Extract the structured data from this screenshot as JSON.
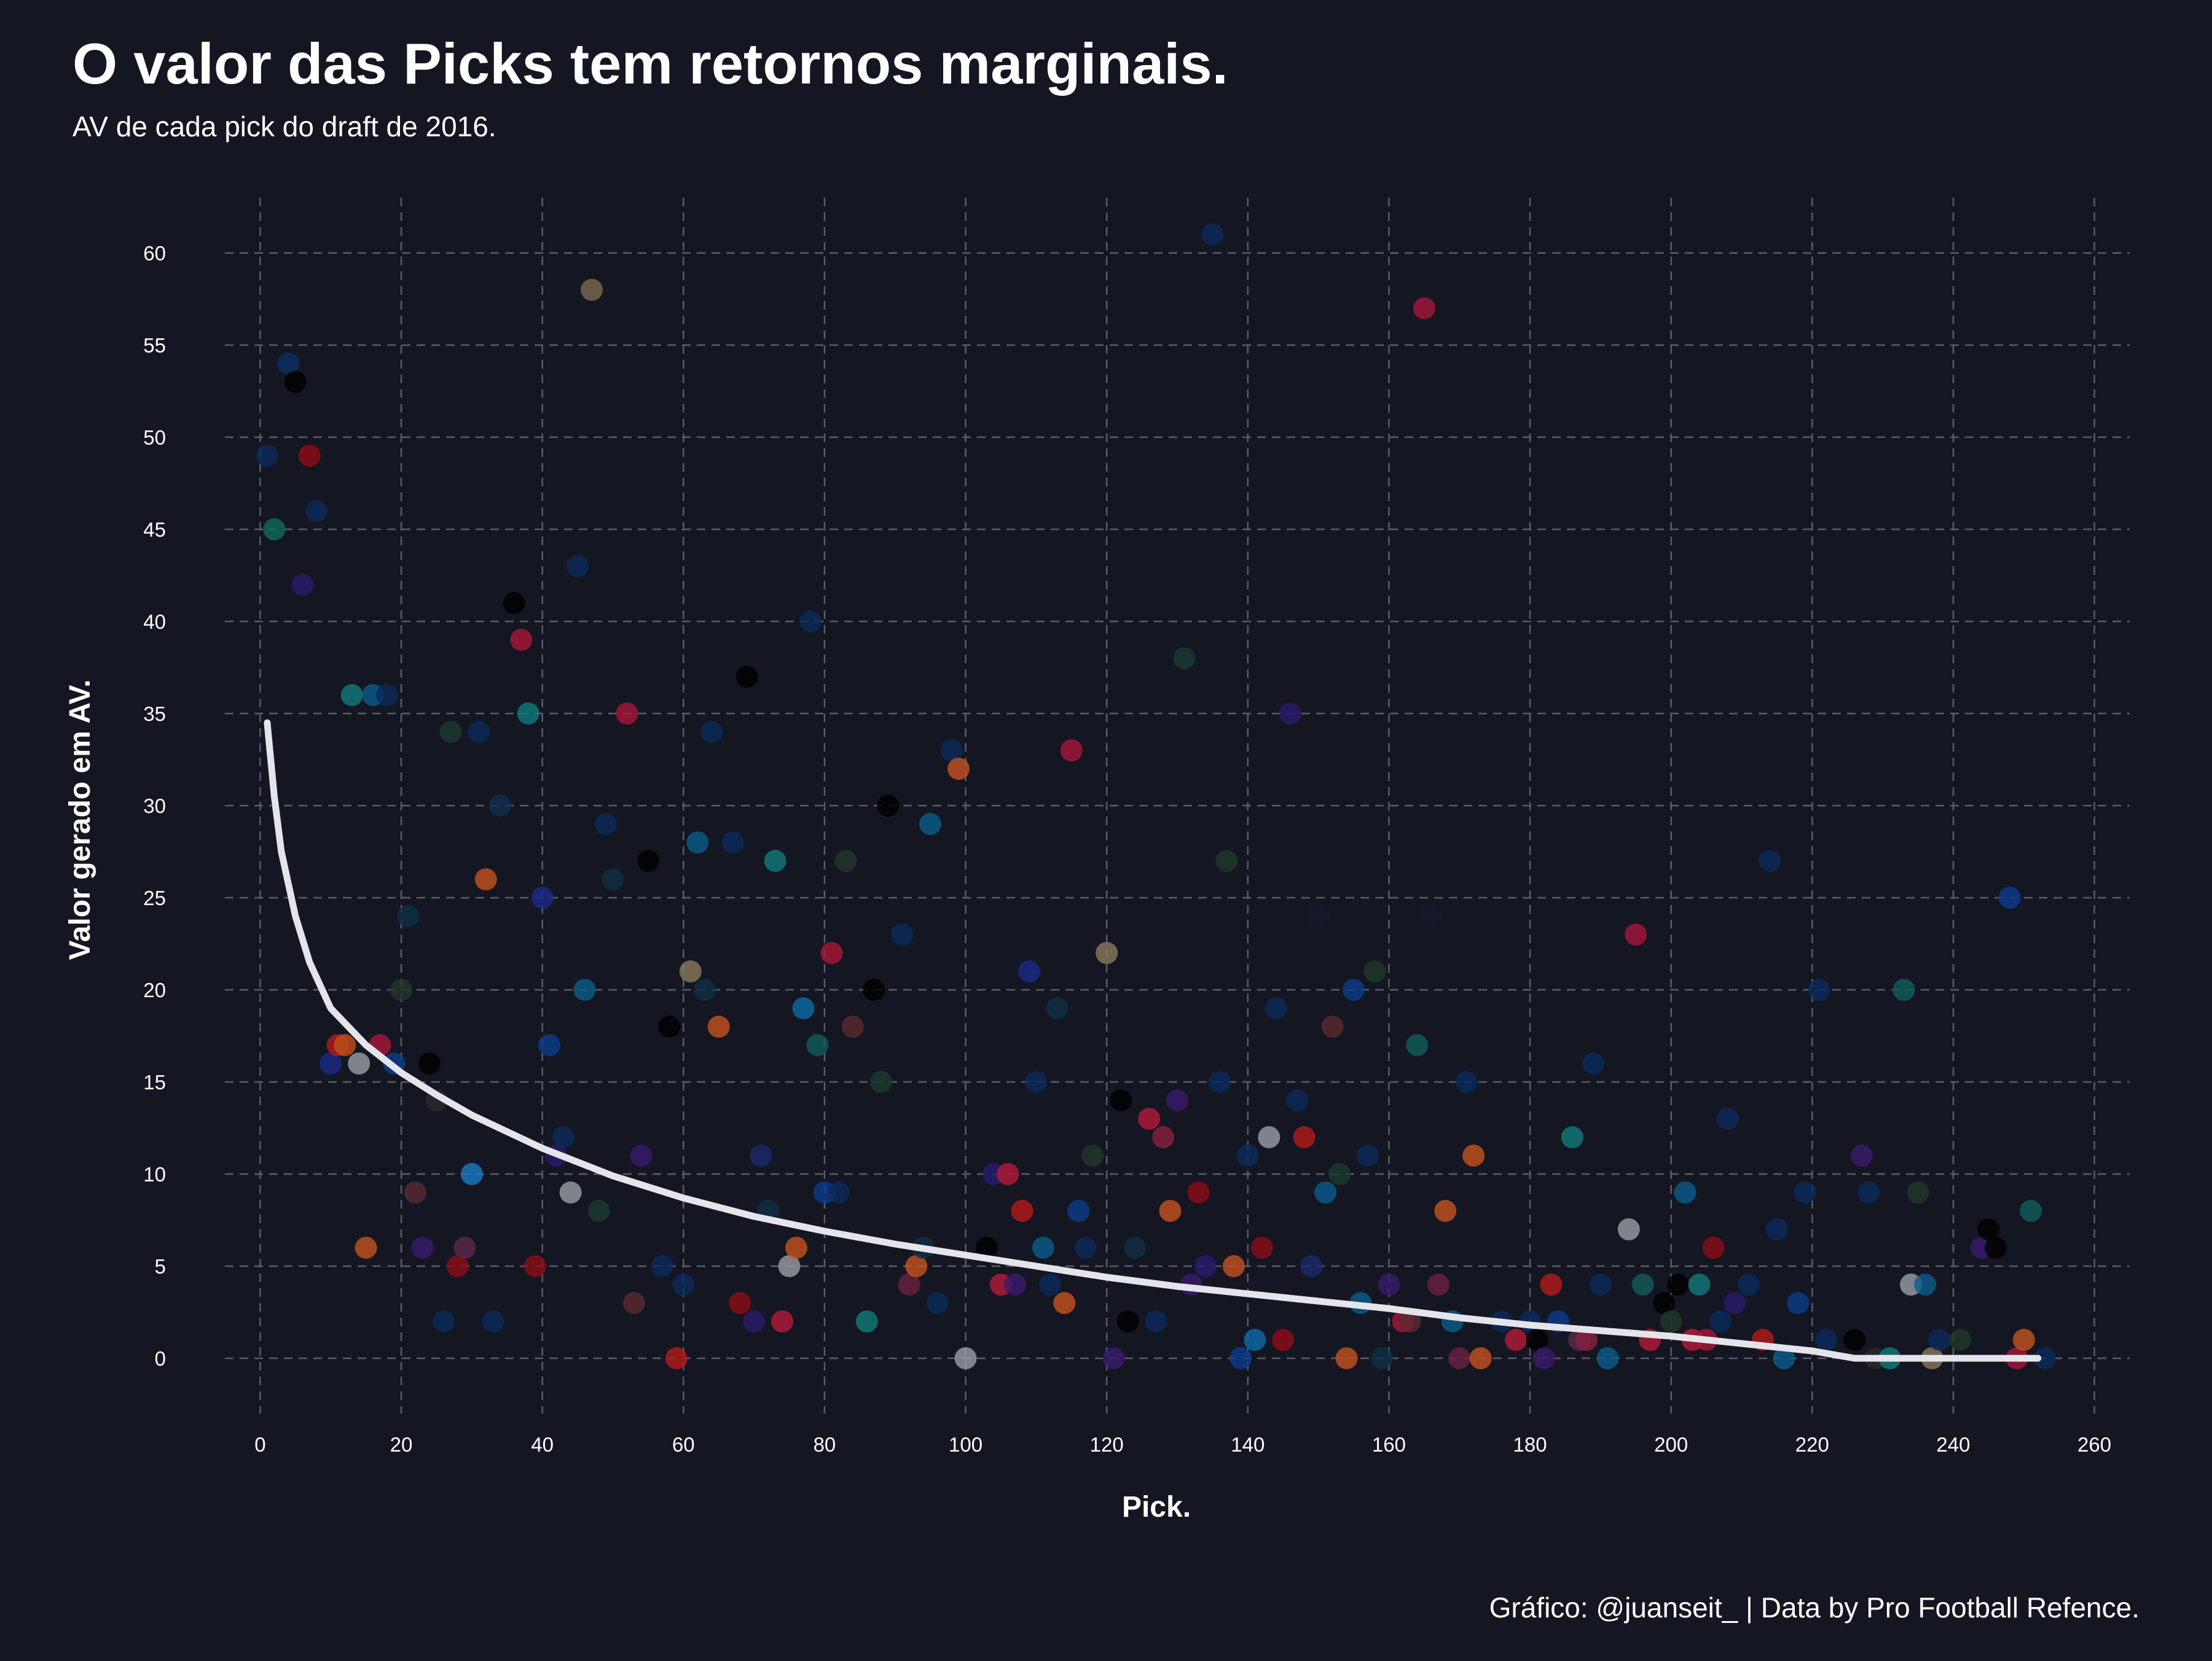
{
  "chart_data": {
    "type": "scatter",
    "title": "O valor das Picks tem retornos marginais.",
    "subtitle": "AV de cada pick do draft de 2016.",
    "xlabel": "Pick.",
    "ylabel": "Valor gerado em AV.",
    "caption": "Gráfico: @juanseit_ | Data by Pro Football Refence.",
    "xlim": [
      -5,
      265
    ],
    "ylim": [
      -3,
      63
    ],
    "x_ticks": [
      0,
      20,
      40,
      60,
      80,
      100,
      120,
      140,
      160,
      180,
      200,
      220,
      240,
      260
    ],
    "y_ticks": [
      0,
      5,
      10,
      15,
      20,
      25,
      30,
      35,
      40,
      45,
      50,
      55,
      60
    ],
    "grid": true,
    "legend": "none",
    "colors": {
      "background": "#141622",
      "grid": "#5a5d68",
      "trend": "#e4e4ea",
      "text": "#ffffff"
    },
    "trend": [
      [
        1,
        34.5
      ],
      [
        2,
        30.5
      ],
      [
        3,
        27.5
      ],
      [
        5,
        24
      ],
      [
        7,
        21.5
      ],
      [
        10,
        19
      ],
      [
        15,
        17
      ],
      [
        20,
        15.5
      ],
      [
        25,
        14.3
      ],
      [
        30,
        13.2
      ],
      [
        40,
        11.4
      ],
      [
        50,
        9.9
      ],
      [
        60,
        8.7
      ],
      [
        70,
        7.7
      ],
      [
        80,
        6.9
      ],
      [
        90,
        6.2
      ],
      [
        100,
        5.6
      ],
      [
        110,
        5
      ],
      [
        120,
        4.4
      ],
      [
        130,
        3.9
      ],
      [
        140,
        3.5
      ],
      [
        150,
        3.1
      ],
      [
        160,
        2.7
      ],
      [
        170,
        2.2
      ],
      [
        180,
        1.8
      ],
      [
        190,
        1.5
      ],
      [
        200,
        1.2
      ],
      [
        210,
        0.8
      ],
      [
        220,
        0.4
      ],
      [
        226,
        0
      ],
      [
        240,
        0
      ],
      [
        252,
        0
      ]
    ],
    "points": [
      {
        "x": 1,
        "y": 49,
        "c": "#0a2a5c"
      },
      {
        "x": 2,
        "y": 45,
        "c": "#0f6b5c"
      },
      {
        "x": 4,
        "y": 54,
        "c": "#0b2f61"
      },
      {
        "x": 5,
        "y": 53,
        "c": "#000000"
      },
      {
        "x": 6,
        "y": 42,
        "c": "#2b1a6e"
      },
      {
        "x": 7,
        "y": 49,
        "c": "#8d0d17"
      },
      {
        "x": 8,
        "y": 46,
        "c": "#0a2a5c"
      },
      {
        "x": 10,
        "y": 16,
        "c": "#1a2a8a"
      },
      {
        "x": 11,
        "y": 17,
        "c": "#b51a1a"
      },
      {
        "x": 12,
        "y": 17,
        "c": "#c2501a"
      },
      {
        "x": 13,
        "y": 36,
        "c": "#0f7a7a"
      },
      {
        "x": 14,
        "y": 16,
        "c": "#9aa0a8"
      },
      {
        "x": 15,
        "y": 6,
        "c": "#c4521e"
      },
      {
        "x": 16,
        "y": 36,
        "c": "#0a5c8c"
      },
      {
        "x": 17,
        "y": 17,
        "c": "#a8173a"
      },
      {
        "x": 18,
        "y": 36,
        "c": "#0a2a5c"
      },
      {
        "x": 19,
        "y": 16,
        "c": "#0b3c8c"
      },
      {
        "x": 20,
        "y": 20,
        "c": "#20382a"
      },
      {
        "x": 21,
        "y": 24,
        "c": "#0f2f45"
      },
      {
        "x": 22,
        "y": 9,
        "c": "#5a2a30"
      },
      {
        "x": 23,
        "y": 6,
        "c": "#3a1a6e"
      },
      {
        "x": 24,
        "y": 16,
        "c": "#000000"
      },
      {
        "x": 25,
        "y": 14,
        "c": "#2a2a2a"
      },
      {
        "x": 26,
        "y": 2,
        "c": "#0a2a5c"
      },
      {
        "x": 27,
        "y": 34,
        "c": "#1c3a30"
      },
      {
        "x": 28,
        "y": 5,
        "c": "#8d0d17"
      },
      {
        "x": 29,
        "y": 6,
        "c": "#5a2a4a"
      },
      {
        "x": 30,
        "y": 10,
        "c": "#1a7ac4"
      },
      {
        "x": 31,
        "y": 34,
        "c": "#0a2a5c"
      },
      {
        "x": 32,
        "y": 26,
        "c": "#c4521e"
      },
      {
        "x": 33,
        "y": 2,
        "c": "#0a2a5c"
      },
      {
        "x": 34,
        "y": 30,
        "c": "#0f3050"
      },
      {
        "x": 36,
        "y": 41,
        "c": "#000000"
      },
      {
        "x": 37,
        "y": 39,
        "c": "#a8173a"
      },
      {
        "x": 38,
        "y": 35,
        "c": "#0f7a7a"
      },
      {
        "x": 39,
        "y": 5,
        "c": "#8d0d17"
      },
      {
        "x": 40,
        "y": 25,
        "c": "#1a2a8a"
      },
      {
        "x": 41,
        "y": 17,
        "c": "#0b3c8c"
      },
      {
        "x": 42,
        "y": 11,
        "c": "#2b1a6e"
      },
      {
        "x": 43,
        "y": 12,
        "c": "#0a2a5c"
      },
      {
        "x": 44,
        "y": 9,
        "c": "#9aa0a8"
      },
      {
        "x": 45,
        "y": 43,
        "c": "#0a2a5c"
      },
      {
        "x": 46,
        "y": 20,
        "c": "#0a5c8c"
      },
      {
        "x": 47,
        "y": 58,
        "c": "#7a6a50"
      },
      {
        "x": 48,
        "y": 8,
        "c": "#1c3a30"
      },
      {
        "x": 49,
        "y": 29,
        "c": "#0a2a5c"
      },
      {
        "x": 50,
        "y": 26,
        "c": "#0f2f45"
      },
      {
        "x": 52,
        "y": 35,
        "c": "#a8173a"
      },
      {
        "x": 53,
        "y": 3,
        "c": "#5a2a30"
      },
      {
        "x": 54,
        "y": 11,
        "c": "#3a1a6e"
      },
      {
        "x": 55,
        "y": 27,
        "c": "#000000"
      },
      {
        "x": 57,
        "y": 5,
        "c": "#0a2a5c"
      },
      {
        "x": 58,
        "y": 18,
        "c": "#000000"
      },
      {
        "x": 59,
        "y": 0,
        "c": "#b51a1a"
      },
      {
        "x": 60,
        "y": 4,
        "c": "#0a2a5c"
      },
      {
        "x": 61,
        "y": 21,
        "c": "#8a7a60"
      },
      {
        "x": 62,
        "y": 28,
        "c": "#0a5c8c"
      },
      {
        "x": 63,
        "y": 20,
        "c": "#0f2f45"
      },
      {
        "x": 64,
        "y": 34,
        "c": "#0a2a5c"
      },
      {
        "x": 65,
        "y": 18,
        "c": "#c4521e"
      },
      {
        "x": 67,
        "y": 28,
        "c": "#0a2a5c"
      },
      {
        "x": 68,
        "y": 3,
        "c": "#8d0d17"
      },
      {
        "x": 69,
        "y": 37,
        "c": "#000000"
      },
      {
        "x": 70,
        "y": 2,
        "c": "#2b1a6e"
      },
      {
        "x": 71,
        "y": 11,
        "c": "#1a2a6e"
      },
      {
        "x": 72,
        "y": 8,
        "c": "#0f2f45"
      },
      {
        "x": 73,
        "y": 27,
        "c": "#0f7a7a"
      },
      {
        "x": 74,
        "y": 2,
        "c": "#b51a3a"
      },
      {
        "x": 75,
        "y": 5,
        "c": "#9aa0a8"
      },
      {
        "x": 76,
        "y": 6,
        "c": "#c4521e"
      },
      {
        "x": 77,
        "y": 19,
        "c": "#0a6ca8"
      },
      {
        "x": 78,
        "y": 40,
        "c": "#0a2a5c"
      },
      {
        "x": 79,
        "y": 17,
        "c": "#0f5c5c"
      },
      {
        "x": 80,
        "y": 9,
        "c": "#0b3c8c"
      },
      {
        "x": 81,
        "y": 22,
        "c": "#a8173a"
      },
      {
        "x": 82,
        "y": 9,
        "c": "#0a2a5c"
      },
      {
        "x": 83,
        "y": 27,
        "c": "#20382a"
      },
      {
        "x": 84,
        "y": 18,
        "c": "#5a2a30"
      },
      {
        "x": 86,
        "y": 2,
        "c": "#0f7a7a"
      },
      {
        "x": 87,
        "y": 20,
        "c": "#000000"
      },
      {
        "x": 88,
        "y": 15,
        "c": "#1c3a30"
      },
      {
        "x": 89,
        "y": 30,
        "c": "#000000"
      },
      {
        "x": 91,
        "y": 23,
        "c": "#0a2a5c"
      },
      {
        "x": 92,
        "y": 4,
        "c": "#6a2040"
      },
      {
        "x": 93,
        "y": 5,
        "c": "#c4521e"
      },
      {
        "x": 94,
        "y": 6,
        "c": "#0f2f45"
      },
      {
        "x": 95,
        "y": 29,
        "c": "#0a5c8c"
      },
      {
        "x": 96,
        "y": 3,
        "c": "#0a2a5c"
      },
      {
        "x": 98,
        "y": 33,
        "c": "#0a2a5c"
      },
      {
        "x": 99,
        "y": 32,
        "c": "#c4521e"
      },
      {
        "x": 100,
        "y": 0,
        "c": "#9aa0a8"
      },
      {
        "x": 103,
        "y": 6,
        "c": "#000000"
      },
      {
        "x": 104,
        "y": 10,
        "c": "#2b1a6e"
      },
      {
        "x": 105,
        "y": 4,
        "c": "#b51a3a"
      },
      {
        "x": 106,
        "y": 10,
        "c": "#b51a3a"
      },
      {
        "x": 107,
        "y": 4,
        "c": "#3a1a6e"
      },
      {
        "x": 108,
        "y": 8,
        "c": "#b51a1a"
      },
      {
        "x": 109,
        "y": 21,
        "c": "#1a2a8a"
      },
      {
        "x": 110,
        "y": 15,
        "c": "#0a2a5c"
      },
      {
        "x": 111,
        "y": 6,
        "c": "#0a5c8c"
      },
      {
        "x": 112,
        "y": 4,
        "c": "#0a2a5c"
      },
      {
        "x": 113,
        "y": 19,
        "c": "#0f2f45"
      },
      {
        "x": 114,
        "y": 3,
        "c": "#c4521e"
      },
      {
        "x": 115,
        "y": 33,
        "c": "#a8173a"
      },
      {
        "x": 116,
        "y": 8,
        "c": "#0b3c8c"
      },
      {
        "x": 117,
        "y": 6,
        "c": "#0a2a5c"
      },
      {
        "x": 118,
        "y": 11,
        "c": "#20382a"
      },
      {
        "x": 120,
        "y": 22,
        "c": "#8a7a60"
      },
      {
        "x": 121,
        "y": 0,
        "c": "#3a1a6e"
      },
      {
        "x": 122,
        "y": 14,
        "c": "#000000"
      },
      {
        "x": 123,
        "y": 2,
        "c": "#000000"
      },
      {
        "x": 124,
        "y": 6,
        "c": "#0f2f45"
      },
      {
        "x": 126,
        "y": 13,
        "c": "#b51a3a"
      },
      {
        "x": 127,
        "y": 2,
        "c": "#0a2a5c"
      },
      {
        "x": 128,
        "y": 12,
        "c": "#8a2040"
      },
      {
        "x": 129,
        "y": 8,
        "c": "#c4521e"
      },
      {
        "x": 130,
        "y": 14,
        "c": "#3a1a6e"
      },
      {
        "x": 131,
        "y": 38,
        "c": "#1c3a30"
      },
      {
        "x": 132,
        "y": 4,
        "c": "#3a1a6e"
      },
      {
        "x": 133,
        "y": 9,
        "c": "#8d0d17"
      },
      {
        "x": 134,
        "y": 5,
        "c": "#2b1a6e"
      },
      {
        "x": 135,
        "y": 61,
        "c": "#0a2a5c"
      },
      {
        "x": 136,
        "y": 15,
        "c": "#0a2a5c"
      },
      {
        "x": 137,
        "y": 27,
        "c": "#20382a"
      },
      {
        "x": 138,
        "y": 5,
        "c": "#c4521e"
      },
      {
        "x": 139,
        "y": 0,
        "c": "#0b3c8c"
      },
      {
        "x": 140,
        "y": 11,
        "c": "#0a2a5c"
      },
      {
        "x": 141,
        "y": 1,
        "c": "#0a6ca8"
      },
      {
        "x": 142,
        "y": 6,
        "c": "#8d0d17"
      },
      {
        "x": 144,
        "y": 19,
        "c": "#0a2a5c"
      },
      {
        "x": 143,
        "y": 12,
        "c": "#9aa0a8"
      },
      {
        "x": 145,
        "y": 1,
        "c": "#8d0d17"
      },
      {
        "x": 146,
        "y": 35,
        "c": "#2b1a6e"
      },
      {
        "x": 147,
        "y": 14,
        "c": "#0a2a5c"
      },
      {
        "x": 148,
        "y": 12,
        "c": "#b51a1a"
      },
      {
        "x": 149,
        "y": 5,
        "c": "#1a2a6e"
      },
      {
        "x": 150,
        "y": 24,
        "c": "#141a2a"
      },
      {
        "x": 151,
        "y": 9,
        "c": "#0a5c8c"
      },
      {
        "x": 152,
        "y": 18,
        "c": "#5a2a30"
      },
      {
        "x": 153,
        "y": 10,
        "c": "#1c3a30"
      },
      {
        "x": 154,
        "y": 0,
        "c": "#c4521e"
      },
      {
        "x": 155,
        "y": 20,
        "c": "#0b3c8c"
      },
      {
        "x": 156,
        "y": 3,
        "c": "#0a5c8c"
      },
      {
        "x": 157,
        "y": 11,
        "c": "#0a2a5c"
      },
      {
        "x": 158,
        "y": 21,
        "c": "#20382a"
      },
      {
        "x": 159,
        "y": 0,
        "c": "#0f2f45"
      },
      {
        "x": 160,
        "y": 4,
        "c": "#3a1a6e"
      },
      {
        "x": 162,
        "y": 2,
        "c": "#a8173a"
      },
      {
        "x": 163,
        "y": 2,
        "c": "#5a2a30"
      },
      {
        "x": 164,
        "y": 17,
        "c": "#0f5c5c"
      },
      {
        "x": 165,
        "y": 57,
        "c": "#a8173a"
      },
      {
        "x": 166,
        "y": 24,
        "c": "#141a2a"
      },
      {
        "x": 167,
        "y": 4,
        "c": "#6a2040"
      },
      {
        "x": 168,
        "y": 8,
        "c": "#c4521e"
      },
      {
        "x": 169,
        "y": 2,
        "c": "#0a5c8c"
      },
      {
        "x": 170,
        "y": 0,
        "c": "#6a2040"
      },
      {
        "x": 171,
        "y": 15,
        "c": "#0a2a5c"
      },
      {
        "x": 172,
        "y": 11,
        "c": "#c4521e"
      },
      {
        "x": 173,
        "y": 0,
        "c": "#c4521e"
      },
      {
        "x": 176,
        "y": 2,
        "c": "#0a2a5c"
      },
      {
        "x": 178,
        "y": 1,
        "c": "#b51a3a"
      },
      {
        "x": 180,
        "y": 2,
        "c": "#0a2a5c"
      },
      {
        "x": 181,
        "y": 1,
        "c": "#000000"
      },
      {
        "x": 182,
        "y": 0,
        "c": "#3a1a6e"
      },
      {
        "x": 183,
        "y": 4,
        "c": "#b51a1a"
      },
      {
        "x": 184,
        "y": 2,
        "c": "#0b3c8c"
      },
      {
        "x": 186,
        "y": 12,
        "c": "#0f7a7a"
      },
      {
        "x": 187,
        "y": 1,
        "c": "#5a2a4a"
      },
      {
        "x": 188,
        "y": 1,
        "c": "#8a2040"
      },
      {
        "x": 189,
        "y": 16,
        "c": "#0a2a5c"
      },
      {
        "x": 190,
        "y": 4,
        "c": "#0a2a5c"
      },
      {
        "x": 191,
        "y": 0,
        "c": "#0a5c8c"
      },
      {
        "x": 194,
        "y": 7,
        "c": "#9aa0a8"
      },
      {
        "x": 195,
        "y": 23,
        "c": "#a8173a"
      },
      {
        "x": 196,
        "y": 4,
        "c": "#0f5c5c"
      },
      {
        "x": 197,
        "y": 1,
        "c": "#b51a3a"
      },
      {
        "x": 199,
        "y": 3,
        "c": "#000000"
      },
      {
        "x": 200,
        "y": 2,
        "c": "#20382a"
      },
      {
        "x": 201,
        "y": 4,
        "c": "#000000"
      },
      {
        "x": 202,
        "y": 9,
        "c": "#0a5c8c"
      },
      {
        "x": 203,
        "y": 1,
        "c": "#b51a3a"
      },
      {
        "x": 204,
        "y": 4,
        "c": "#0f7a7a"
      },
      {
        "x": 205,
        "y": 1,
        "c": "#a8173a"
      },
      {
        "x": 206,
        "y": 6,
        "c": "#8d0d17"
      },
      {
        "x": 207,
        "y": 2,
        "c": "#0a2a5c"
      },
      {
        "x": 208,
        "y": 13,
        "c": "#0a2a5c"
      },
      {
        "x": 209,
        "y": 3,
        "c": "#2b1a6e"
      },
      {
        "x": 211,
        "y": 4,
        "c": "#0a2a5c"
      },
      {
        "x": 213,
        "y": 1,
        "c": "#b51a1a"
      },
      {
        "x": 214,
        "y": 27,
        "c": "#0a2a5c"
      },
      {
        "x": 215,
        "y": 7,
        "c": "#0a2a5c"
      },
      {
        "x": 216,
        "y": 0,
        "c": "#0a5c8c"
      },
      {
        "x": 218,
        "y": 3,
        "c": "#0b3c8c"
      },
      {
        "x": 219,
        "y": 9,
        "c": "#0a2a5c"
      },
      {
        "x": 221,
        "y": 20,
        "c": "#0a2a5c"
      },
      {
        "x": 222,
        "y": 1,
        "c": "#0a2a5c"
      },
      {
        "x": 226,
        "y": 1,
        "c": "#000000"
      },
      {
        "x": 227,
        "y": 11,
        "c": "#3a1a6e"
      },
      {
        "x": 228,
        "y": 9,
        "c": "#0a2a5c"
      },
      {
        "x": 229,
        "y": 0,
        "c": "#2a2a2a"
      },
      {
        "x": 231,
        "y": 0,
        "c": "#0f7a7a"
      },
      {
        "x": 233,
        "y": 20,
        "c": "#0f5c5c"
      },
      {
        "x": 234,
        "y": 4,
        "c": "#9aa0a8"
      },
      {
        "x": 235,
        "y": 9,
        "c": "#20382a"
      },
      {
        "x": 236,
        "y": 4,
        "c": "#0a5c8c"
      },
      {
        "x": 237,
        "y": 0,
        "c": "#8a7a60"
      },
      {
        "x": 238,
        "y": 1,
        "c": "#0a2a5c"
      },
      {
        "x": 241,
        "y": 1,
        "c": "#20382a"
      },
      {
        "x": 244,
        "y": 6,
        "c": "#3a1a6e"
      },
      {
        "x": 245,
        "y": 7,
        "c": "#000000"
      },
      {
        "x": 246,
        "y": 6,
        "c": "#000000"
      },
      {
        "x": 248,
        "y": 25,
        "c": "#0b3c8c"
      },
      {
        "x": 249,
        "y": 0,
        "c": "#a8173a"
      },
      {
        "x": 250,
        "y": 1,
        "c": "#c4521e"
      },
      {
        "x": 251,
        "y": 8,
        "c": "#0f5c5c"
      },
      {
        "x": 253,
        "y": 0,
        "c": "#0a2a5c"
      }
    ]
  }
}
